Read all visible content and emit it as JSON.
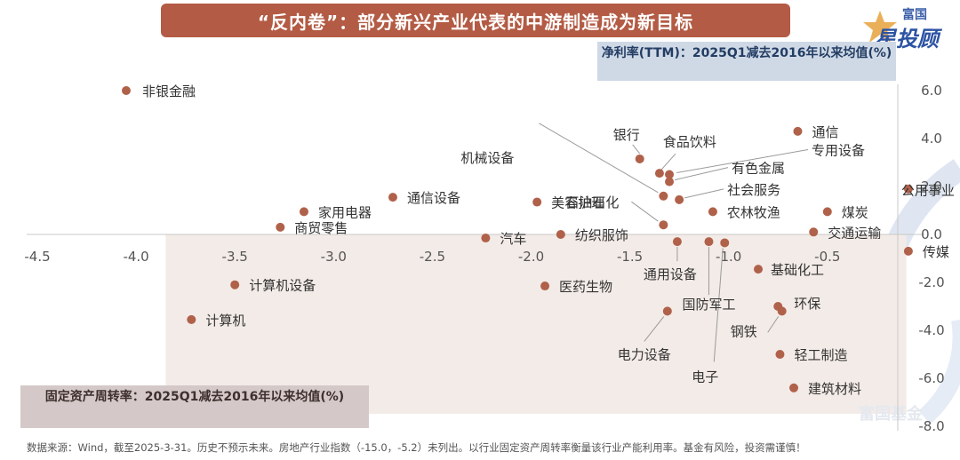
{
  "header": {
    "title": "“反内卷”：部分新兴产业代表的中游制造成为新目标",
    "brand_top": "富国",
    "brand_main": "星投顾"
  },
  "watermark": "富国基金",
  "footnote": "数据来源：Wind，截至2025-3-31。历史不预示未来。房地产行业指数（-15.0，-5.2）未列出。以行业固定资产周转率衡量该行业产能利用率。基金有风险，投资需谨慎！",
  "colors": {
    "accent": "#b35b44",
    "point": "#b0614a",
    "quadrant_fill": "#f3ebe7",
    "y_box": "#cfd9e6",
    "x_box": "#d4c9c8"
  },
  "chart_data": {
    "type": "scatter",
    "title": "",
    "xlabel": "固定资产周转率：2025Q1减去2016年以来均值(%)",
    "ylabel": "净利率(TTM)：2025Q1减去2016年以来均值(%)",
    "xlim": [
      -4.5,
      -0.1
    ],
    "ylim": [
      -8.0,
      6.0
    ],
    "x_ticks": [
      "-4.5",
      "-4.0",
      "-3.5",
      "-3.0",
      "-2.5",
      "-2.0",
      "-1.5",
      "-1.0",
      "-0.5"
    ],
    "y_ticks": [
      "6.0",
      "4.0",
      "2.0",
      "0.0",
      "-2.0",
      "-4.0",
      "-6.0",
      "-8.0"
    ],
    "grid": false,
    "shaded_region": {
      "x": [
        -3.85,
        -0.1
      ],
      "y": [
        -8.0,
        0.0
      ]
    },
    "points": [
      {
        "name": "非银金融",
        "x": -4.05,
        "y": 6.0
      },
      {
        "name": "通信",
        "x": -0.65,
        "y": 4.3
      },
      {
        "name": "银行",
        "x": -1.45,
        "y": 3.15
      },
      {
        "name": "食品饮料",
        "x": -1.35,
        "y": 2.55
      },
      {
        "name": "有色金属",
        "x": -1.3,
        "y": 2.2
      },
      {
        "name": "机械设备",
        "x": -1.33,
        "y": 1.6
      },
      {
        "name": "社会服务",
        "x": -1.25,
        "y": 1.45
      },
      {
        "name": "专用设备",
        "x": -1.3,
        "y": 2.5
      },
      {
        "name": "石油石化",
        "x": -1.33,
        "y": 0.4
      },
      {
        "name": "通信设备",
        "x": -2.7,
        "y": 1.55
      },
      {
        "name": "美容护理",
        "x": -1.97,
        "y": 1.35
      },
      {
        "name": "家用电器",
        "x": -3.15,
        "y": 0.95
      },
      {
        "name": "农林牧渔",
        "x": -1.08,
        "y": 0.95
      },
      {
        "name": "煤炭",
        "x": -0.5,
        "y": 0.95
      },
      {
        "name": "商贸零售",
        "x": -3.27,
        "y": 0.3
      },
      {
        "name": "汽车",
        "x": -2.23,
        "y": -0.15
      },
      {
        "name": "纺织服饰",
        "x": -1.85,
        "y": 0.0
      },
      {
        "name": "交通运输",
        "x": -0.57,
        "y": 0.1
      },
      {
        "name": "公用事业",
        "x": -0.09,
        "y": 1.9
      },
      {
        "name": "传媒",
        "x": -0.09,
        "y": -0.7
      },
      {
        "name": "通用设备",
        "x": -1.26,
        "y": -0.3
      },
      {
        "name": "国防军工",
        "x": -1.1,
        "y": -0.3
      },
      {
        "name": "电子",
        "x": -1.02,
        "y": -0.35
      },
      {
        "name": "基础化工",
        "x": -0.85,
        "y": -1.45
      },
      {
        "name": "计算机设备",
        "x": -3.5,
        "y": -2.1
      },
      {
        "name": "医药生物",
        "x": -1.93,
        "y": -2.15
      },
      {
        "name": "电力设备",
        "x": -1.31,
        "y": -3.2
      },
      {
        "name": "环保",
        "x": -0.75,
        "y": -3.0
      },
      {
        "name": "钢铁",
        "x": -0.73,
        "y": -3.2
      },
      {
        "name": "计算机",
        "x": -3.72,
        "y": -3.55
      },
      {
        "name": "轻工制造",
        "x": -0.74,
        "y": -5.0
      },
      {
        "name": "建筑材料",
        "x": -0.67,
        "y": -6.4
      }
    ]
  }
}
